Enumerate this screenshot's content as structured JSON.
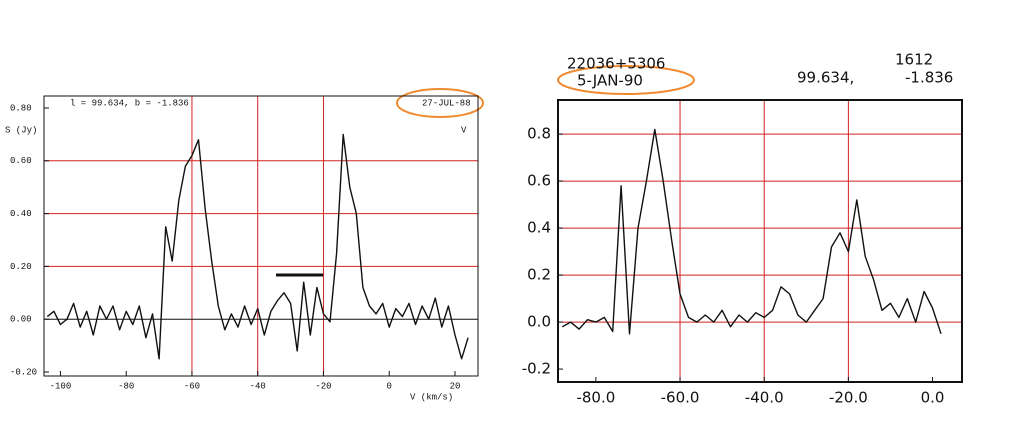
{
  "chart_data": [
    {
      "type": "line",
      "header": "l =  99.634, b =  -1.836",
      "date": "27-JUL-88",
      "y_label": "S (Jy)",
      "corner_mark": "V",
      "x_label": "V (km/s)",
      "x": [
        -104,
        -102,
        -100,
        -98,
        -96,
        -94,
        -92,
        -90,
        -88,
        -86,
        -84,
        -82,
        -80,
        -78,
        -76,
        -74,
        -72,
        -70,
        -68,
        -66,
        -64,
        -62,
        -60,
        -58,
        -56,
        -54,
        -52,
        -50,
        -48,
        -46,
        -44,
        -42,
        -40,
        -38,
        -36,
        -34,
        -32,
        -30,
        -28,
        -26,
        -24,
        -22,
        -20,
        -18,
        -16,
        -14,
        -12,
        -10,
        -8,
        -6,
        -4,
        -2,
        0,
        2,
        4,
        6,
        8,
        10,
        12,
        14,
        16,
        18,
        20,
        22,
        24
      ],
      "values": [
        0.01,
        0.03,
        -0.02,
        0.0,
        0.06,
        -0.03,
        0.03,
        -0.06,
        0.05,
        0.0,
        0.05,
        -0.04,
        0.03,
        -0.02,
        0.05,
        -0.07,
        0.02,
        -0.15,
        0.35,
        0.22,
        0.45,
        0.58,
        0.62,
        0.68,
        0.42,
        0.22,
        0.05,
        -0.04,
        0.02,
        -0.03,
        0.05,
        -0.02,
        0.04,
        -0.06,
        0.03,
        0.07,
        0.1,
        0.06,
        -0.12,
        0.14,
        -0.06,
        0.12,
        0.02,
        -0.01,
        0.25,
        0.7,
        0.5,
        0.4,
        0.12,
        0.05,
        0.02,
        0.06,
        -0.03,
        0.04,
        0.01,
        0.06,
        -0.02,
        0.05,
        0.0,
        0.08,
        -0.03,
        0.05,
        -0.06,
        -0.15,
        -0.07
      ],
      "color": "#111111",
      "grid_color": "#d42020",
      "xlim": [
        -105,
        27
      ],
      "ylim": [
        -0.2,
        0.8
      ],
      "xticks": [
        -100,
        -80,
        -60,
        -40,
        -20,
        0,
        20
      ],
      "yticks": [
        {
          "value": -0.2,
          "label": "-0.20"
        },
        {
          "value": 0,
          "label": "0.00"
        },
        {
          "value": 0.2,
          "label": "0.20"
        },
        {
          "value": 0.4,
          "label": "0.40"
        },
        {
          "value": 0.6,
          "label": "0.60"
        },
        {
          "value": 0.8,
          "label": "0.80"
        }
      ],
      "xgrid": [
        -60,
        -40,
        -20
      ],
      "ygrid": [
        0.2,
        0.4,
        0.6
      ],
      "zero_line": true
    },
    {
      "type": "line",
      "source": "22036+5306",
      "date": "5-JAN-90",
      "line_id": "1612",
      "longitude": "99.634,",
      "latitude": "-1.836",
      "x": [
        -88,
        -86,
        -84,
        -82,
        -80,
        -78,
        -76,
        -74,
        -72,
        -70,
        -68,
        -66,
        -64,
        -62,
        -60,
        -58,
        -56,
        -54,
        -52,
        -50,
        -48,
        -46,
        -44,
        -42,
        -40,
        -38,
        -36,
        -34,
        -32,
        -30,
        -28,
        -26,
        -24,
        -22,
        -20,
        -18,
        -16,
        -14,
        -12,
        -10,
        -8,
        -6,
        -4,
        -2,
        0,
        2
      ],
      "values": [
        -0.02,
        0.0,
        -0.03,
        0.01,
        0.0,
        0.02,
        -0.04,
        0.58,
        -0.05,
        0.4,
        0.6,
        0.82,
        0.6,
        0.35,
        0.12,
        0.02,
        0.0,
        0.03,
        0.0,
        0.05,
        -0.02,
        0.03,
        0.0,
        0.04,
        0.02,
        0.05,
        0.15,
        0.12,
        0.03,
        0.0,
        0.05,
        0.1,
        0.32,
        0.38,
        0.3,
        0.52,
        0.28,
        0.18,
        0.05,
        0.08,
        0.02,
        0.1,
        0.0,
        0.13,
        0.06,
        -0.05
      ],
      "color": "#111111",
      "grid_color": "#d42020",
      "xlim": [
        -89,
        7
      ],
      "ylim": [
        -0.255,
        0.945
      ],
      "xticks": [
        {
          "value": -80,
          "label": "-80.0"
        },
        {
          "value": -60,
          "label": "-60.0"
        },
        {
          "value": -40,
          "label": "-40.0"
        },
        {
          "value": -20,
          "label": "-20.0"
        },
        {
          "value": 0,
          "label": "0.0"
        }
      ],
      "yticks": [
        {
          "value": -0.2,
          "label": "-0.2"
        },
        {
          "value": 0,
          "label": "0.0"
        },
        {
          "value": 0.2,
          "label": "0.2"
        },
        {
          "value": 0.4,
          "label": "0.4"
        },
        {
          "value": 0.6,
          "label": "0.6"
        },
        {
          "value": 0.8,
          "label": "0.8"
        }
      ],
      "xgrid": [
        -60,
        -40,
        -20
      ],
      "ygrid": [
        0,
        0.2,
        0.4,
        0.6,
        0.8
      ],
      "zero_line": false
    }
  ]
}
